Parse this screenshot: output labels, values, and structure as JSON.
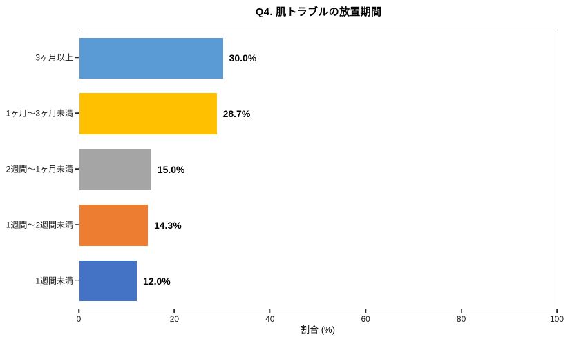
{
  "chart_data": {
    "type": "bar",
    "orientation": "horizontal",
    "title": "Q4. 肌トラブルの放置期間",
    "categories": [
      "3ヶ月以上",
      "1ヶ月〜3ヶ月未満",
      "2週間〜1ヶ月未満",
      "1週間〜2週間未満",
      "1週間未満"
    ],
    "values": [
      30.0,
      28.7,
      15.0,
      14.3,
      12.0
    ],
    "value_labels": [
      "30.0%",
      "28.7%",
      "15.0%",
      "14.3%",
      "12.0%"
    ],
    "bar_colors": [
      "#5B9BD5",
      "#FFC000",
      "#A5A5A5",
      "#ED7D31",
      "#4472C4"
    ],
    "xlabel": "割合 (%)",
    "ylabel": "",
    "xlim": [
      0,
      100
    ],
    "x_ticks": [
      0,
      20,
      40,
      60,
      80,
      100
    ],
    "grid": false,
    "legend_position": "none",
    "bar_label_color": "#000000",
    "spine_color": "#262626"
  }
}
